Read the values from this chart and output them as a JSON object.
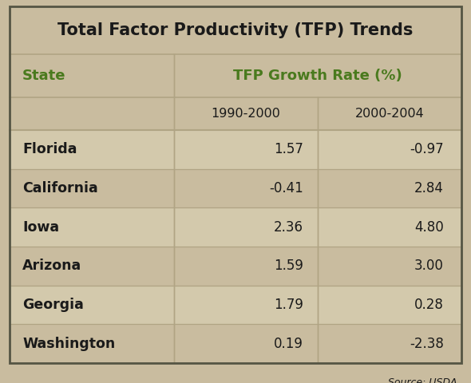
{
  "title": "Total Factor Productivity (TFP) Trends",
  "col_header_label": "State",
  "col_header_rate": "TFP Growth Rate (%)",
  "period_labels": [
    "1990-2000",
    "2000-2004"
  ],
  "states": [
    "Florida",
    "California",
    "Iowa",
    "Arizona",
    "Georgia",
    "Washington"
  ],
  "values_1990_2000": [
    1.57,
    -0.41,
    2.36,
    1.59,
    1.79,
    0.19
  ],
  "values_2000_2004": [
    -0.97,
    2.84,
    4.8,
    3.0,
    0.28,
    -2.38
  ],
  "source_text": "Source: USDA",
  "bg_color": "#c9bc9f",
  "title_color": "#1a1a1a",
  "header_green": "#4a7a1e",
  "data_text_color": "#1a1a1a",
  "state_bold_color": "#1a1a1a",
  "line_color": "#b0a484",
  "outer_border_color": "#555544"
}
